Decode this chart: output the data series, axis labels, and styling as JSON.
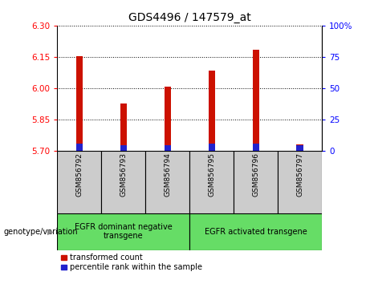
{
  "title": "GDS4496 / 147579_at",
  "samples": [
    "GSM856792",
    "GSM856793",
    "GSM856794",
    "GSM856795",
    "GSM856796",
    "GSM856797"
  ],
  "red_values": [
    6.155,
    5.925,
    6.005,
    6.085,
    6.185,
    5.73
  ],
  "blue_values": [
    5.735,
    5.725,
    5.725,
    5.735,
    5.735,
    5.725
  ],
  "ymin": 5.7,
  "ymax": 6.3,
  "yticks_left": [
    5.7,
    5.85,
    6.0,
    6.15,
    6.3
  ],
  "yticks_right": [
    0,
    25,
    50,
    75,
    100
  ],
  "bar_width": 0.15,
  "red_color": "#cc1100",
  "blue_color": "#2222cc",
  "group1_label": "EGFR dominant negative\ntransgene",
  "group2_label": "EGFR activated transgene",
  "group1_samples": [
    0,
    1,
    2
  ],
  "group2_samples": [
    3,
    4,
    5
  ],
  "genotype_label": "genotype/variation",
  "legend1": "transformed count",
  "legend2": "percentile rank within the sample",
  "bar_bottom": 5.7,
  "title_fontsize": 10,
  "tick_fontsize": 7.5,
  "green_color": "#66dd66",
  "gray_color": "#cccccc",
  "sample_label_fontsize": 6.5,
  "geno_label_fontsize": 7,
  "legend_fontsize": 7
}
